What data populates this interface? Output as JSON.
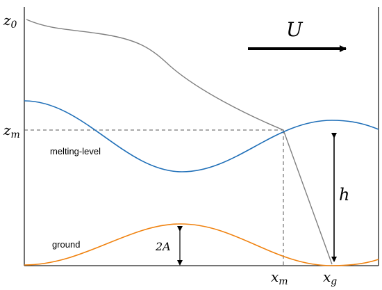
{
  "labels": {
    "z0_main": "z",
    "z0_sub": "0",
    "zm_main": "z",
    "zm_sub": "m",
    "U": "U",
    "melting_level": "melting-level",
    "ground": "ground",
    "two_A": "2A",
    "h": "h",
    "xm_main": "x",
    "xm_sub": "m",
    "xg_main": "x",
    "xg_sub": "g"
  },
  "colors": {
    "melting_level_curve": "#1f6fb8",
    "ground_curve": "#f0820f",
    "trajectory": "#808080",
    "axes": "#222222",
    "dashed": "#555555",
    "arrow": "#000000"
  }
}
